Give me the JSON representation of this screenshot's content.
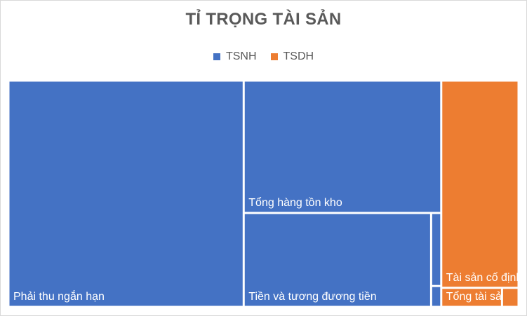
{
  "chart_data": {
    "type": "treemap",
    "title": "TỈ TRỌNG TÀI SẢN",
    "legend_position": "top",
    "colors": {
      "TSNH": "#4472c4",
      "TSDH": "#ed7d31"
    },
    "series": [
      {
        "name": "TSNH",
        "items": [
          {
            "label": "Phải thu ngắn hạn",
            "value": 50.5
          },
          {
            "label": "Tổng hàng tồn kho",
            "value": 24.8
          },
          {
            "label": "Tiền và tương đương tiền",
            "value": 16.7
          },
          {
            "label": "",
            "value": 0.7
          },
          {
            "label": "",
            "value": 0.2
          }
        ]
      },
      {
        "name": "TSDH",
        "items": [
          {
            "label": "Tài sản cố định",
            "value": 15.2
          },
          {
            "label": "Tổng tài sản d...",
            "value": 1.1
          },
          {
            "label": "",
            "value": 0.3
          }
        ]
      }
    ]
  },
  "legend": [
    {
      "label": "TSNH",
      "color": "#4472c4"
    },
    {
      "label": "TSDH",
      "color": "#ed7d31"
    }
  ]
}
